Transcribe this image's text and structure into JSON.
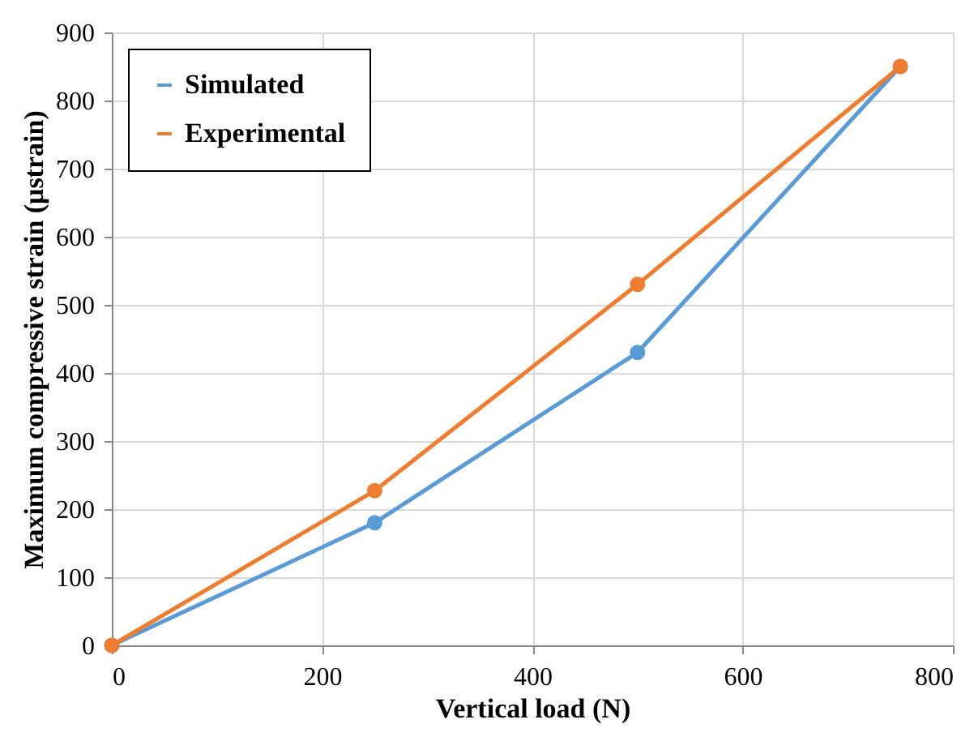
{
  "chart_data": {
    "type": "line",
    "xlabel": "Vertical load (N)",
    "ylabel": "Maximum compressive strain (μstrain)",
    "x": [
      0,
      250,
      500,
      750
    ],
    "series": [
      {
        "name": "Simulated",
        "color": "#5b9bd5",
        "values": [
          0,
          180,
          430,
          850
        ]
      },
      {
        "name": "Experimental",
        "color": "#ed7d31",
        "values": [
          0,
          227,
          530,
          850
        ]
      }
    ],
    "xlim": [
      0,
      800
    ],
    "xticks": [
      0,
      200,
      400,
      600,
      800
    ],
    "ylim": [
      0,
      900
    ],
    "yticks": [
      0,
      100,
      200,
      300,
      400,
      500,
      600,
      700,
      800,
      900
    ],
    "grid": true,
    "legend": "top left",
    "marker": "circle",
    "line_style": "solid"
  }
}
